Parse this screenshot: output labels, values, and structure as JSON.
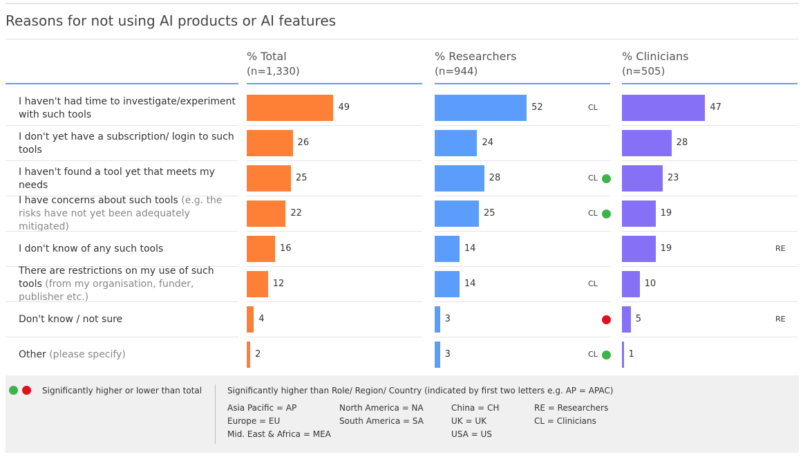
{
  "chart_data": {
    "type": "bar",
    "title": "Reasons for not using AI products or AI features",
    "categories": [
      {
        "text": "I haven't had time to investigate/experiment with such tools"
      },
      {
        "text": "I don't yet have a subscription/ login to such tools"
      },
      {
        "text": "I haven't found a tool yet that meets my needs"
      },
      {
        "text": "I have concerns about such tools",
        "note": "(e.g. the risks have not yet been adequately mitigated)"
      },
      {
        "text": "I don't know of any such tools"
      },
      {
        "text": "There are restrictions on my use of such tools",
        "note": "(from my organisation, funder, publisher etc.)"
      },
      {
        "text": "Don't know / not sure"
      },
      {
        "text": "Other",
        "note": "(please specify)"
      }
    ],
    "xlim": [
      0,
      100
    ],
    "series": [
      {
        "name": "% Total",
        "sample": "(n=1,330)",
        "color": "#fe7f36",
        "values": [
          49,
          26,
          25,
          22,
          16,
          12,
          4,
          2
        ],
        "flags": [
          null,
          null,
          null,
          null,
          null,
          null,
          null,
          null
        ],
        "dot_colors": [
          null,
          null,
          null,
          null,
          null,
          null,
          null,
          null
        ]
      },
      {
        "name": "% Researchers",
        "sample": "(n=944)",
        "color": "#5b9dfa",
        "values": [
          52,
          24,
          28,
          25,
          14,
          14,
          3,
          3
        ],
        "flags": [
          "CL",
          null,
          "CL",
          "CL",
          null,
          "CL",
          null,
          "CL"
        ],
        "dot_colors": [
          null,
          null,
          "#3cb44b",
          "#3cb44b",
          null,
          null,
          "#e0101f",
          "#3cb44b"
        ]
      },
      {
        "name": "% Clinicians",
        "sample": "(n=505)",
        "color": "#8670f6",
        "values": [
          47,
          28,
          23,
          19,
          19,
          10,
          5,
          1
        ],
        "flags": [
          null,
          null,
          null,
          null,
          "RE",
          null,
          "RE",
          null
        ],
        "dot_colors": [
          null,
          null,
          null,
          null,
          null,
          null,
          null,
          null
        ]
      }
    ],
    "legend": {
      "dot_colors": [
        "#3cb44b",
        "#e0101f"
      ],
      "dot_text": "Significantly higher or lower than total",
      "key_title": "Significantly higher than Role/ Region/ Country (indicated by first two letters e.g. AP = APAC)",
      "key_columns": [
        [
          "Asia Pacific = AP",
          "Europe = EU",
          "Mid. East & Africa = MEA"
        ],
        [
          "North America = NA",
          "South America = SA"
        ],
        [
          "China = CH",
          "UK = UK",
          "USA = US"
        ],
        [
          "RE = Researchers",
          "CL = Clinicians"
        ]
      ]
    }
  }
}
